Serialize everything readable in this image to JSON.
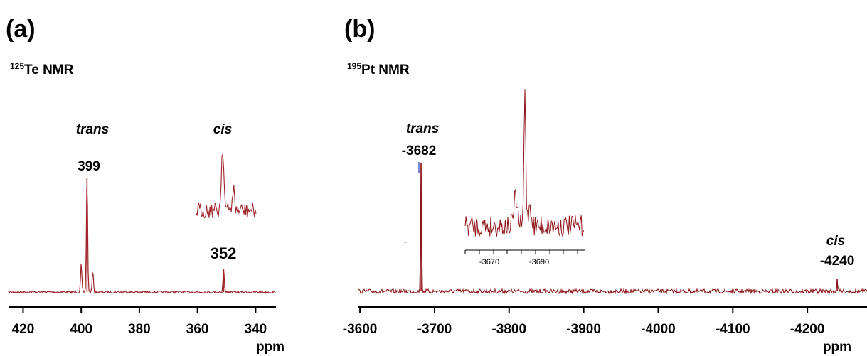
{
  "chart_data": [
    {
      "type": "line",
      "panel_label": "(a)",
      "nucleus_mass": "125",
      "nucleus_name": "Te NMR",
      "x_unit": "ppm",
      "x_ticks": [
        "420",
        "400",
        "380",
        "360",
        "340"
      ],
      "xlim": [
        425,
        333
      ],
      "x_reversed": true,
      "line_color": "#a0252a",
      "peaks": [
        {
          "name": "trans",
          "value": "399",
          "x": 398,
          "relative_height": 1.0
        },
        {
          "name": "cis",
          "value": "352",
          "x": 351,
          "relative_height": 0.2
        }
      ],
      "satellite_peaks": [
        {
          "x": 400,
          "relative_height": 0.24
        },
        {
          "x": 396,
          "relative_height": 0.19
        }
      ],
      "inset": {
        "description_of": "cis peak expansion"
      }
    },
    {
      "type": "line",
      "panel_label": "(b)",
      "nucleus_mass": "195",
      "nucleus_name": "Pt NMR",
      "x_unit": "ppm",
      "x_ticks": [
        "-3600",
        "-3700",
        "-3800",
        "-3900",
        "-4000",
        "-4100",
        "-4200"
      ],
      "xlim": [
        -3598,
        -4280
      ],
      "x_reversed": true,
      "line_color": "#8e1418",
      "peaks": [
        {
          "name": "trans",
          "value": "-3682",
          "x": -3682,
          "relative_height": 1.0
        },
        {
          "name": "cis",
          "value": "-4240",
          "x": -4240,
          "relative_height": 0.1
        }
      ],
      "inset": {
        "description_of": "cis peak expansion",
        "x_ticks": [
          "-3670",
          "-3690"
        ]
      }
    }
  ]
}
